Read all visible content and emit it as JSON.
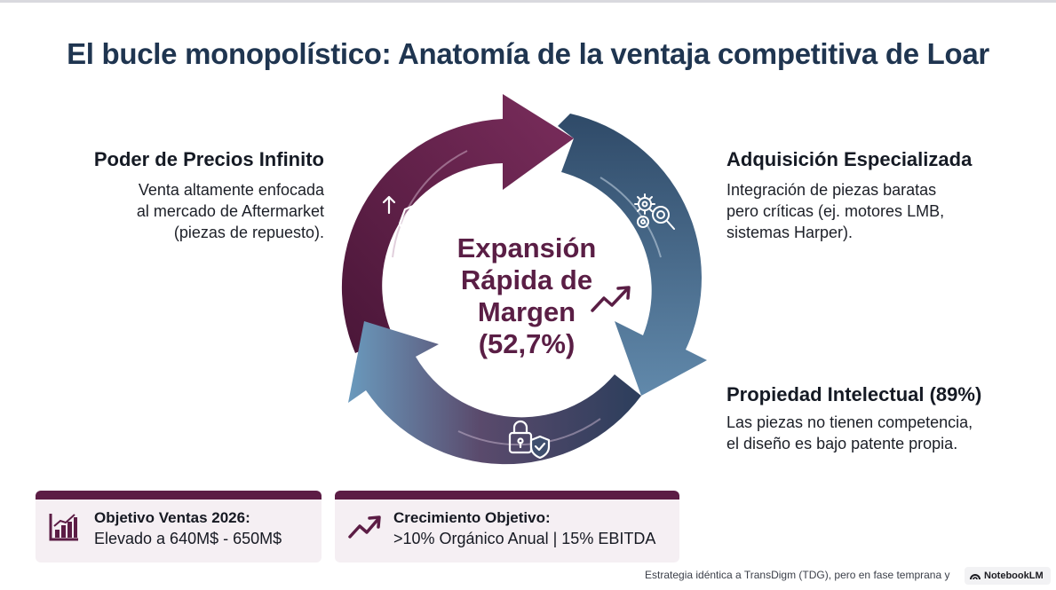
{
  "title": "El bucle monopolístico: Anatomía de la ventaja competitiva de Loar",
  "center": {
    "lines": [
      "Expansión",
      "Rápida de",
      "Margen",
      "(52,7%)"
    ],
    "icon": "trend-up-arrow-icon"
  },
  "panels": {
    "pricing": {
      "heading": "Poder de Precios Infinito",
      "lines": [
        "Venta altamente enfocada",
        "al mercado de Aftermarket",
        "(piezas de repuesto)."
      ],
      "icon": "price-tag-up-icon"
    },
    "acquisition": {
      "heading": "Adquisición Especializada",
      "lines": [
        "Integración de piezas baratas",
        "pero críticas (ej. motores LMB,",
        "sistemas Harper)."
      ],
      "icon": "gears-magnifier-icon"
    },
    "ip": {
      "heading": "Propiedad Intelectual (89%)",
      "lines": [
        "Las piezas no tienen competencia,",
        "el diseño es bajo patente propia."
      ],
      "icon": "padlock-shield-icon"
    }
  },
  "cards": [
    {
      "title": "Objetivo Ventas 2026:",
      "value": "Elevado a 640M$ - 650M$",
      "icon": "bar-chart-icon"
    },
    {
      "title": "Crecimiento Objetivo:",
      "value": ">10% Orgánico Anual | 15% EBITDA",
      "icon": "trend-up-arrow-icon"
    }
  ],
  "footer": {
    "note": "Estrategia idéntica a TransDigm (TDG), pero en fase temprana y"
  },
  "brand": {
    "name": "NotebookLM"
  },
  "colors": {
    "title": "#1f3550",
    "plum": "#5c1d45",
    "slate_blue": "#35506f",
    "steel_blue": "#4f7a9c",
    "card_bg": "#f5eff3"
  }
}
